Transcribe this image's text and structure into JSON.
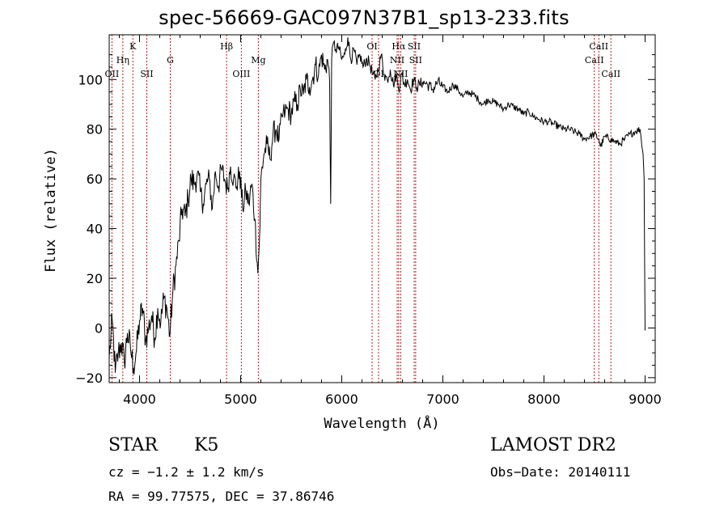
{
  "chart_data": {
    "type": "line",
    "title": "spec-56669-GAC097N37B1_sp13-233.fits",
    "xlabel": "Wavelength (Å)",
    "ylabel": "Flux (relative)",
    "xlim": [
      3700,
      9100
    ],
    "ylim": [
      -22,
      118
    ],
    "x_ticks": [
      4000,
      5000,
      6000,
      7000,
      8000,
      9000
    ],
    "y_ticks": [
      -20,
      0,
      20,
      40,
      60,
      80,
      100
    ],
    "grid": false,
    "line_color": "#000000",
    "marker_color": "#b22222",
    "series": [
      {
        "x": [
          3700,
          3730,
          3760,
          3790,
          3820,
          3850,
          3880,
          3910,
          3940,
          3970,
          4000,
          4030,
          4060,
          4090,
          4120,
          4150,
          4180,
          4210,
          4240,
          4270,
          4300,
          4330,
          4360,
          4390,
          4420,
          4450,
          4480,
          4510,
          4540,
          4570,
          4600,
          4630,
          4660,
          4690,
          4720,
          4750,
          4780,
          4810,
          4840,
          4870,
          4900,
          4930,
          4960,
          4990,
          5020,
          5050,
          5080,
          5110,
          5140,
          5170,
          5190,
          5200,
          5230,
          5260,
          5290,
          5320,
          5350,
          5380,
          5410,
          5440,
          5470,
          5500,
          5530,
          5560,
          5590,
          5620,
          5650,
          5680,
          5710,
          5740,
          5770,
          5800,
          5830,
          5860,
          5880,
          5890,
          5900,
          5920,
          5940,
          5970,
          6000,
          6030,
          6060,
          6090,
          6120,
          6150,
          6180,
          6210,
          6240,
          6270,
          6300,
          6330,
          6360,
          6390,
          6420,
          6450,
          6480,
          6510,
          6540,
          6563,
          6590,
          6620,
          6650,
          6680,
          6710,
          6740,
          6770,
          6800,
          6850,
          6900,
          6950,
          7000,
          7050,
          7100,
          7150,
          7200,
          7250,
          7300,
          7350,
          7400,
          7450,
          7500,
          7550,
          7600,
          7650,
          7700,
          7750,
          7800,
          7850,
          7900,
          7950,
          8000,
          8050,
          8100,
          8150,
          8200,
          8250,
          8300,
          8350,
          8400,
          8450,
          8500,
          8542,
          8560,
          8600,
          8662,
          8700,
          8750,
          8800,
          8850,
          8900,
          8950,
          8980,
          8990,
          9000
        ],
        "y": [
          -12,
          3,
          -18,
          -10,
          -6,
          -14,
          -2,
          -8,
          -16,
          -9,
          3,
          8,
          -5,
          0,
          5,
          -4,
          8,
          2,
          12,
          8,
          -3,
          15,
          25,
          35,
          48,
          45,
          52,
          60,
          58,
          62,
          55,
          50,
          58,
          60,
          48,
          63,
          57,
          64,
          60,
          56,
          65,
          60,
          57,
          63,
          48,
          55,
          50,
          58,
          44,
          22,
          40,
          60,
          70,
          74,
          68,
          78,
          80,
          76,
          85,
          87,
          88,
          86,
          91,
          90,
          96,
          94,
          100,
          97,
          100,
          106,
          102,
          110,
          104,
          108,
          99,
          50,
          108,
          115,
          112,
          113,
          108,
          110,
          117,
          108,
          112,
          106,
          110,
          105,
          108,
          107,
          103,
          100,
          104,
          110,
          102,
          100,
          104,
          98,
          102,
          96,
          102,
          98,
          100,
          96,
          100,
          97,
          98,
          99,
          98,
          96,
          99,
          97,
          95,
          98,
          96,
          93,
          95,
          94,
          92,
          90,
          92,
          91,
          90,
          88,
          90,
          89,
          88,
          86,
          87,
          85,
          84,
          83,
          83,
          82,
          81,
          80,
          80,
          79,
          78,
          76,
          77,
          78,
          76,
          73,
          77,
          76,
          75,
          74,
          76,
          78,
          79,
          80,
          70,
          60,
          -1
        ]
      }
    ],
    "line_markers": [
      {
        "label": "OII",
        "x": 3727,
        "row": 3
      },
      {
        "label": "Hη",
        "x": 3835,
        "row": 2
      },
      {
        "label": "K",
        "x": 3934,
        "row": 1
      },
      {
        "label": "SII",
        "x": 4072,
        "row": 3
      },
      {
        "label": "G",
        "x": 4304,
        "row": 2
      },
      {
        "label": "Hβ",
        "x": 4861,
        "row": 1
      },
      {
        "label": "OIII",
        "x": 5007,
        "row": 3
      },
      {
        "label": "Mg",
        "x": 5175,
        "row": 2
      },
      {
        "label": "OI",
        "x": 6300,
        "row": 1
      },
      {
        "label": "OI",
        "x": 6364,
        "row": 3
      },
      {
        "label": "Hα",
        "x": 6563,
        "row": 1
      },
      {
        "label": "NII",
        "x": 6548,
        "row": 2
      },
      {
        "label": "NII",
        "x": 6583,
        "row": 3
      },
      {
        "label": "SII",
        "x": 6716,
        "row": 1
      },
      {
        "label": "SII",
        "x": 6731,
        "row": 2
      },
      {
        "label": "CaII",
        "x": 8498,
        "row": 2
      },
      {
        "label": "CaII",
        "x": 8542,
        "row": 1
      },
      {
        "label": "CaII",
        "x": 8662,
        "row": 3
      }
    ]
  },
  "info": {
    "class": "STAR",
    "subclass": "K5",
    "survey": "LAMOST DR2",
    "cz": "cz = −1.2 ± 1.2 km/s",
    "obs_date": "Obs−Date: 20140111",
    "radec": "RA =  99.77575, DEC =  37.86746"
  }
}
